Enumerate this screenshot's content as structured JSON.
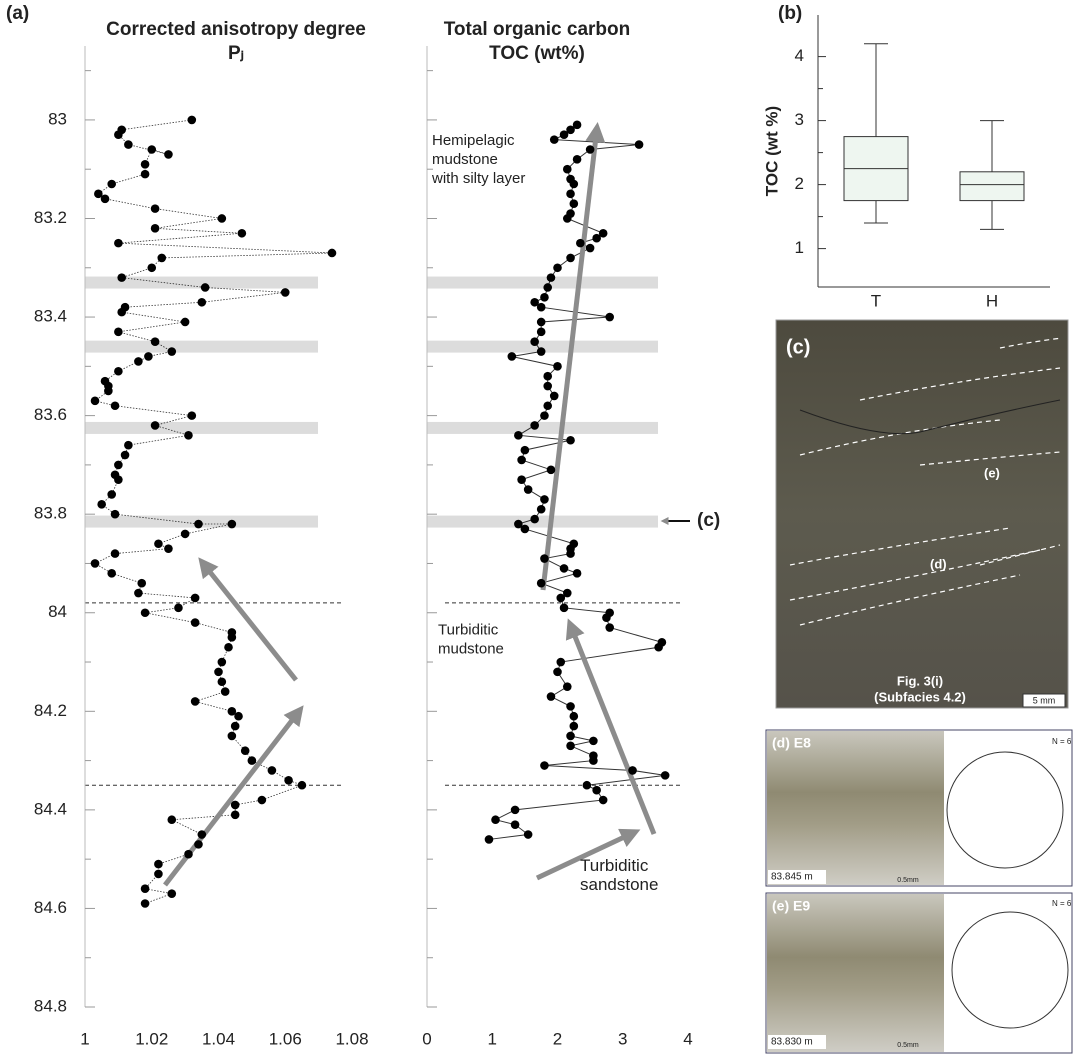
{
  "chart_data": [
    {
      "type": "line",
      "panel": "(a)",
      "title": "Corrected anisotropy degree",
      "subtitle": "Pⱼ",
      "line_style": "dotted",
      "color": "#000000",
      "xlim": [
        1,
        1.08
      ],
      "xticks": [
        1,
        1.02,
        1.04,
        1.06,
        1.08
      ],
      "ylim": [
        84.8,
        82.85
      ],
      "yticks": [
        83,
        83.2,
        83.4,
        83.6,
        83.8,
        84,
        84.2,
        84.4,
        84.6,
        84.8
      ],
      "ytick_labels": true,
      "bands": [
        83.33,
        83.46,
        83.625,
        83.815
      ],
      "dashed_lines": [
        83.98,
        84.35
      ],
      "y": [
        83.0,
        83.02,
        83.03,
        83.05,
        83.07,
        83.06,
        83.09,
        83.11,
        83.13,
        83.15,
        83.16,
        83.18,
        83.2,
        83.22,
        83.23,
        83.25,
        83.27,
        83.28,
        83.3,
        83.32,
        83.34,
        83.35,
        83.37,
        83.38,
        83.39,
        83.41,
        83.43,
        83.45,
        83.47,
        83.48,
        83.49,
        83.51,
        83.53,
        83.54,
        83.55,
        83.57,
        83.58,
        83.6,
        83.62,
        83.64,
        83.66,
        83.68,
        83.7,
        83.72,
        83.73,
        83.76,
        83.78,
        83.8,
        83.82,
        83.82,
        83.84,
        83.86,
        83.87,
        83.88,
        83.9,
        83.92,
        83.94,
        83.96,
        83.97,
        83.99,
        84.0,
        84.02,
        84.04,
        84.05,
        84.07,
        84.1,
        84.12,
        84.14,
        84.16,
        84.18,
        84.2,
        84.21,
        84.23,
        84.25,
        84.28,
        84.3,
        84.32,
        84.34,
        84.35,
        84.38,
        84.39,
        84.41,
        84.42,
        84.45,
        84.47,
        84.49,
        84.51,
        84.53,
        84.56,
        84.57,
        84.59
      ],
      "values": [
        1.032,
        1.011,
        1.01,
        1.013,
        1.025,
        1.02,
        1.018,
        1.018,
        1.008,
        1.004,
        1.006,
        1.021,
        1.041,
        1.021,
        1.047,
        1.01,
        1.074,
        1.023,
        1.02,
        1.011,
        1.036,
        1.06,
        1.035,
        1.012,
        1.011,
        1.03,
        1.01,
        1.021,
        1.026,
        1.019,
        1.016,
        1.01,
        1.006,
        1.007,
        1.007,
        1.003,
        1.009,
        1.032,
        1.021,
        1.031,
        1.013,
        1.012,
        1.01,
        1.009,
        1.01,
        1.008,
        1.005,
        1.009,
        1.034,
        1.044,
        1.03,
        1.022,
        1.025,
        1.009,
        1.003,
        1.008,
        1.017,
        1.016,
        1.033,
        1.028,
        1.018,
        1.033,
        1.044,
        1.044,
        1.043,
        1.041,
        1.04,
        1.041,
        1.042,
        1.033,
        1.044,
        1.046,
        1.045,
        1.044,
        1.048,
        1.05,
        1.056,
        1.061,
        1.065,
        1.053,
        1.045,
        1.045,
        1.026,
        1.035,
        1.034,
        1.031,
        1.022,
        1.022,
        1.018,
        1.026,
        1.018
      ]
    },
    {
      "type": "line",
      "title": "Total organic carbon",
      "subtitle": "TOC (wt%)",
      "line_style": "solid",
      "color": "#000000",
      "xlim": [
        0,
        4
      ],
      "xticks": [
        0,
        1,
        2,
        3,
        4
      ],
      "ylim": [
        84.8,
        82.85
      ],
      "yticks": [
        83,
        83.2,
        83.4,
        83.6,
        83.8,
        84,
        84.2,
        84.4,
        84.6,
        84.8
      ],
      "ytick_labels": false,
      "bands": [
        83.33,
        83.46,
        83.625,
        83.815
      ],
      "dashed_lines": [
        83.98,
        84.35
      ],
      "annotations": [
        [
          "Hemipelagic",
          "mudstone",
          "with silty layer"
        ],
        [
          "Turbiditic",
          "mudstone"
        ],
        [
          "Turbiditic",
          "sandstone"
        ],
        [
          "(c)"
        ]
      ],
      "y": [
        83.01,
        83.02,
        83.03,
        83.04,
        83.05,
        83.06,
        83.08,
        83.1,
        83.12,
        83.13,
        83.15,
        83.17,
        83.19,
        83.2,
        83.23,
        83.24,
        83.25,
        83.26,
        83.28,
        83.3,
        83.32,
        83.34,
        83.36,
        83.37,
        83.38,
        83.4,
        83.41,
        83.43,
        83.45,
        83.47,
        83.48,
        83.5,
        83.52,
        83.54,
        83.56,
        83.58,
        83.6,
        83.62,
        83.64,
        83.65,
        83.67,
        83.69,
        83.71,
        83.73,
        83.75,
        83.77,
        83.79,
        83.81,
        83.82,
        83.83,
        83.86,
        83.87,
        83.88,
        83.89,
        83.91,
        83.92,
        83.94,
        83.96,
        83.97,
        83.99,
        84.0,
        84.01,
        84.03,
        84.06,
        84.07,
        84.1,
        84.12,
        84.15,
        84.17,
        84.19,
        84.21,
        84.23,
        84.25,
        84.26,
        84.27,
        84.29,
        84.3,
        84.31,
        84.32,
        84.33,
        84.35,
        84.36,
        84.38,
        84.4,
        84.42,
        84.43,
        84.45,
        84.46
      ],
      "values": [
        2.3,
        2.2,
        2.1,
        1.95,
        3.25,
        2.5,
        2.3,
        2.15,
        2.2,
        2.25,
        2.2,
        2.25,
        2.2,
        2.15,
        2.7,
        2.6,
        2.35,
        2.5,
        2.2,
        2.0,
        1.9,
        1.85,
        1.8,
        1.65,
        1.75,
        2.8,
        1.75,
        1.75,
        1.65,
        1.75,
        1.3,
        2.0,
        1.85,
        1.85,
        1.95,
        1.85,
        1.8,
        1.65,
        1.4,
        2.2,
        1.5,
        1.45,
        1.9,
        1.45,
        1.55,
        1.8,
        1.75,
        1.65,
        1.4,
        1.5,
        2.25,
        2.2,
        2.2,
        1.8,
        2.1,
        2.3,
        1.75,
        2.15,
        2.05,
        2.1,
        2.8,
        2.75,
        2.8,
        3.6,
        3.55,
        2.05,
        2.0,
        2.15,
        1.9,
        2.2,
        2.25,
        2.25,
        2.2,
        2.55,
        2.2,
        2.55,
        2.55,
        1.8,
        3.15,
        3.65,
        2.45,
        2.6,
        2.7,
        1.35,
        1.05,
        1.35,
        1.55,
        0.95
      ]
    },
    {
      "type": "box",
      "panel": "(b)",
      "ylabel": "TOC (wt %)",
      "color": "#eef6f0",
      "categories": [
        "T",
        "H"
      ],
      "ylim": [
        0.4,
        4.65
      ],
      "yticks": [
        1,
        2,
        3,
        4
      ],
      "stats": [
        {
          "min": 1.4,
          "q1": 1.75,
          "median": 2.25,
          "q3": 2.75,
          "max": 4.2
        },
        {
          "min": 1.3,
          "q1": 1.75,
          "median": 2.0,
          "q3": 2.2,
          "max": 3.0
        }
      ]
    }
  ],
  "photos": [
    {
      "label": "(c)",
      "annotations": [
        "(e)",
        "(d)",
        "Fig. 3(i)",
        "(Subfacies 4.2)"
      ],
      "scale": "5 mm"
    },
    {
      "label": "(d) E8",
      "depth": "83.845 m",
      "scale": "0.5mm",
      "stereonet": "N = 6"
    },
    {
      "label": "(e) E9",
      "depth": "83.830 m",
      "scale": "0.5mm",
      "stereonet": "N = 6"
    }
  ]
}
